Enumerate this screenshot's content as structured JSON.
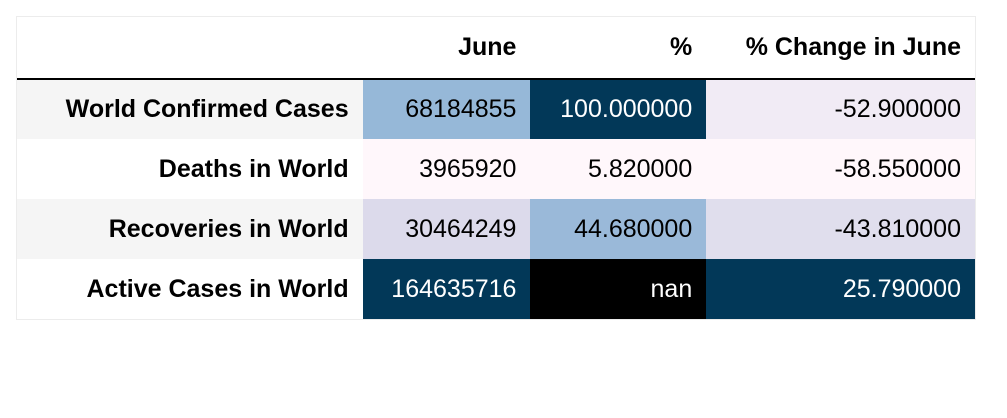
{
  "table": {
    "header": {
      "index": "",
      "june": "June",
      "pct": "%",
      "change": "% Change in June"
    },
    "rows": [
      {
        "label": "World Confirmed Cases",
        "june": "68184855",
        "pct": "100.000000",
        "change": "-52.900000"
      },
      {
        "label": "Deaths in World",
        "june": "3965920",
        "pct": "5.820000",
        "change": "-58.550000"
      },
      {
        "label": "Recoveries in World",
        "june": "30464249",
        "pct": "44.680000",
        "change": "-43.810000"
      },
      {
        "label": "Active Cases in World",
        "june": "164635716",
        "pct": "nan",
        "change": "25.790000"
      }
    ]
  },
  "cell_colors": {
    "row0": {
      "june": {
        "bg": "#96b8d8",
        "fg": "#000000"
      },
      "pct": {
        "bg": "#023858",
        "fg": "#ffffff"
      },
      "change": {
        "bg": "#f1ebf5",
        "fg": "#000000"
      }
    },
    "row1": {
      "june": {
        "bg": "#fff7fb",
        "fg": "#000000"
      },
      "pct": {
        "bg": "#fff7fb",
        "fg": "#000000"
      },
      "change": {
        "bg": "#fff7fb",
        "fg": "#000000"
      }
    },
    "row2": {
      "june": {
        "bg": "#dcdaeb",
        "fg": "#000000"
      },
      "pct": {
        "bg": "#9ab9d9",
        "fg": "#000000"
      },
      "change": {
        "bg": "#e0deed",
        "fg": "#000000"
      }
    },
    "row3": {
      "june": {
        "bg": "#023858",
        "fg": "#ffffff"
      },
      "pct": {
        "bg": "#000000",
        "fg": "#ffffff"
      },
      "change": {
        "bg": "#023858",
        "fg": "#ffffff"
      }
    }
  }
}
